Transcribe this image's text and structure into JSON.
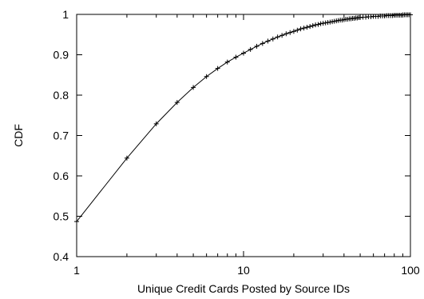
{
  "chart_data": {
    "type": "line",
    "title": "",
    "xlabel": "Unique Credit Cards Posted by Source IDs",
    "ylabel": "CDF",
    "xscale": "log",
    "xlim": [
      1,
      100
    ],
    "ylim": [
      0.4,
      1.0
    ],
    "x_ticks": [
      1,
      10,
      100
    ],
    "x_tick_labels": [
      "1",
      "10",
      "100"
    ],
    "y_ticks": [
      0.4,
      0.5,
      0.6,
      0.7,
      0.8,
      0.9,
      1.0
    ],
    "y_tick_labels": [
      "0.4",
      "0.5",
      "0.6",
      "0.7",
      "0.8",
      "0.9",
      "1"
    ],
    "grid": false,
    "legend": "none",
    "marker": "plus",
    "line_color": "#000000",
    "series": [
      {
        "x": [
          1,
          2,
          3,
          4,
          5,
          6,
          7,
          8,
          9,
          10,
          11,
          12,
          13,
          14,
          15,
          16,
          17,
          18,
          19,
          20,
          21,
          22,
          23,
          24,
          25,
          26,
          27,
          28,
          29,
          30,
          31,
          32,
          33,
          34,
          35,
          36,
          37,
          38,
          39,
          40,
          41,
          42,
          43,
          44,
          45,
          46,
          47,
          48,
          49,
          50,
          52,
          54,
          56,
          58,
          60,
          62,
          64,
          66,
          68,
          70,
          72,
          74,
          76,
          78,
          80,
          82,
          84,
          86,
          88,
          90,
          92,
          94,
          96,
          98,
          100
        ],
        "y": [
          0.487,
          0.644,
          0.729,
          0.782,
          0.819,
          0.846,
          0.866,
          0.882,
          0.894,
          0.904,
          0.913,
          0.921,
          0.928,
          0.934,
          0.939,
          0.944,
          0.948,
          0.952,
          0.955,
          0.958,
          0.961,
          0.964,
          0.966,
          0.968,
          0.97,
          0.972,
          0.974,
          0.975,
          0.977,
          0.978,
          0.979,
          0.98,
          0.981,
          0.982,
          0.983,
          0.984,
          0.985,
          0.986,
          0.986,
          0.987,
          0.988,
          0.988,
          0.989,
          0.989,
          0.99,
          0.99,
          0.991,
          0.991,
          0.992,
          0.992,
          0.993,
          0.993,
          0.994,
          0.994,
          0.995,
          0.995,
          0.995,
          0.996,
          0.996,
          0.996,
          0.997,
          0.997,
          0.997,
          0.997,
          0.998,
          0.998,
          0.998,
          0.998,
          0.998,
          0.999,
          0.999,
          0.999,
          0.999,
          0.999,
          0.999
        ]
      }
    ]
  }
}
